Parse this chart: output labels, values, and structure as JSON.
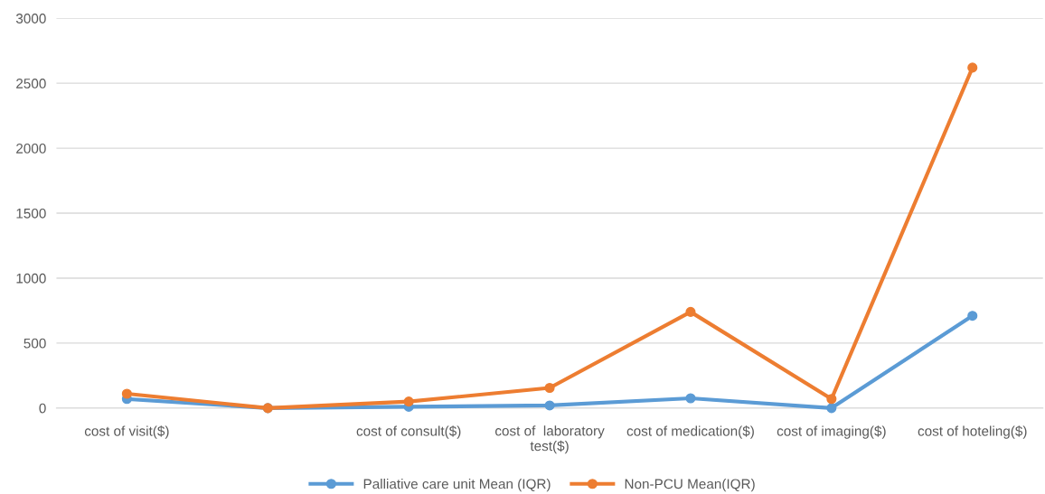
{
  "chart_data": {
    "type": "line",
    "categories": [
      "cost of visit($)",
      null,
      "cost of consult($)",
      "cost of  laboratory\ntest($)",
      "cost of medication($)",
      "cost of imaging($)",
      "cost of hoteling($)"
    ],
    "series": [
      {
        "name": "Palliative care unit Mean (IQR)",
        "color": "#5b9bd5",
        "values": [
          70,
          0,
          10,
          20,
          75,
          0,
          710
        ]
      },
      {
        "name": "Non-PCU Mean(IQR)",
        "color": "#ed7d31",
        "values": [
          110,
          0,
          50,
          155,
          740,
          70,
          2620
        ]
      }
    ],
    "ylim": [
      0,
      3000
    ],
    "yticks": [
      0,
      500,
      1000,
      1500,
      2000,
      2500,
      3000
    ],
    "grid": "y",
    "legend": "bottom",
    "marker": "circle",
    "line_style": "solid"
  }
}
